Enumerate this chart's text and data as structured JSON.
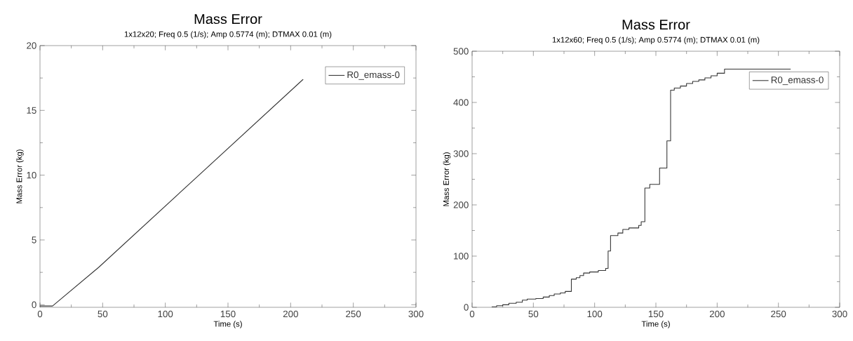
{
  "chart_data": [
    {
      "type": "line",
      "title": "Mass Error",
      "subtitle": "1x12x20; Freq 0.5 (1/s); Amp 0.5774 (m); DTMAX 0.01 (m)",
      "xlabel": "Time (s)",
      "ylabel": "Mass Error (kg)",
      "x": [
        0,
        10,
        47,
        210
      ],
      "series": [
        {
          "name": "R0_emass-0",
          "color": "#333333",
          "values": [
            -0.1,
            -0.1,
            2.9,
            17.4
          ]
        }
      ],
      "xlim": [
        0,
        300
      ],
      "ylim": [
        -0.2,
        20
      ],
      "xticks": [
        0,
        50,
        100,
        150,
        200,
        250,
        300
      ],
      "yticks": [
        0,
        5,
        10,
        15,
        20
      ],
      "legend": "top right"
    },
    {
      "type": "step",
      "title": "Mass Error",
      "subtitle": "1x12x60; Freq 0.5 (1/s); Amp 0.5774 (m); DTMAX 0.01 (m)",
      "xlabel": "Time (s)",
      "ylabel": "Mass Error (kg)",
      "x": [
        16,
        20,
        25,
        30,
        36,
        41,
        45,
        52,
        58,
        63,
        67,
        72,
        76,
        81,
        85,
        88,
        91,
        96,
        103,
        109,
        111,
        113,
        119,
        123,
        128,
        136,
        138,
        141,
        145,
        153,
        159,
        162,
        165,
        170,
        175,
        180,
        185,
        190,
        195,
        200,
        206,
        260
      ],
      "series": [
        {
          "name": "R0_emass-0",
          "color": "#333333",
          "values": [
            1,
            3,
            5,
            8,
            10,
            14,
            16,
            17,
            20,
            23,
            26,
            28,
            31,
            55,
            58,
            62,
            67,
            69,
            72,
            76,
            110,
            140,
            145,
            152,
            155,
            160,
            167,
            233,
            240,
            272,
            325,
            424,
            428,
            432,
            437,
            441,
            444,
            448,
            452,
            457,
            465,
            465
          ]
        }
      ],
      "xlim": [
        0,
        300
      ],
      "ylim": [
        0,
        500
      ],
      "xticks": [
        0,
        50,
        100,
        150,
        200,
        250,
        300
      ],
      "yticks": [
        0,
        100,
        200,
        300,
        400,
        500
      ],
      "legend": "top right"
    }
  ]
}
